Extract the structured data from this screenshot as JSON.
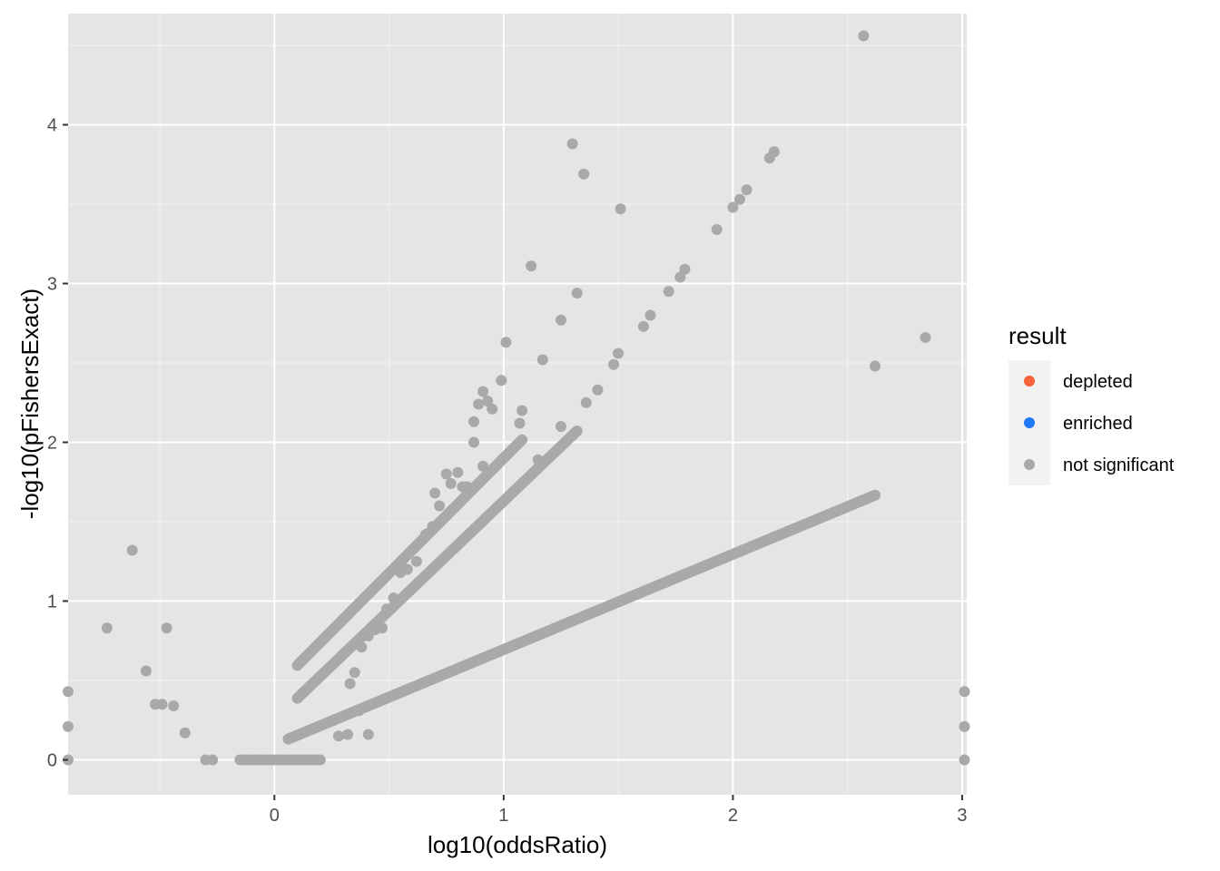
{
  "chart_data": {
    "type": "scatter",
    "title": "",
    "xlabel": "log10(oddsRatio)",
    "ylabel": "-log10(pFishersExact)",
    "xlim": [
      -0.9,
      3.02
    ],
    "ylim": [
      -0.22,
      4.7
    ],
    "x_ticks": [
      0,
      1,
      2,
      3
    ],
    "y_ticks": [
      0,
      1,
      2,
      3,
      4
    ],
    "x_tick_labels": [
      "0",
      "1",
      "2",
      "3"
    ],
    "y_tick_labels": [
      "0",
      "1",
      "2",
      "3",
      "4"
    ],
    "grid": true,
    "panel_background": "#e5e5e5",
    "legend": {
      "title": "result",
      "position": "right",
      "entries": [
        {
          "label": "depleted",
          "color": "#f8623a"
        },
        {
          "label": "enriched",
          "color": "#1f78f4"
        },
        {
          "label": "not significant",
          "color": "#a9a9a9"
        }
      ]
    },
    "series": [
      {
        "name": "not significant",
        "color": "#a9a9a9",
        "x": [
          2.57,
          1.3,
          1.35,
          1.51,
          2.18,
          2.16,
          2.06,
          2.03,
          2.0,
          1.93,
          1.12,
          1.32,
          1.79,
          1.77,
          1.72,
          1.25,
          1.17,
          1.01,
          0.99,
          0.91,
          0.93,
          0.89,
          0.87,
          0.95,
          0.91,
          0.87,
          1.08,
          1.07,
          1.64,
          1.61,
          1.5,
          1.48,
          1.41,
          1.36,
          2.84,
          2.62,
          1.15,
          1.25,
          0.82,
          0.77,
          0.69,
          0.72,
          -0.62,
          -0.73,
          -0.47,
          -0.56,
          -0.52,
          -0.49,
          -0.44,
          -0.39,
          -0.3,
          -0.27,
          0.37,
          0.41,
          0.32,
          0.28,
          0.17,
          0.16,
          -0.9,
          -0.9,
          -0.9,
          3.01,
          3.01,
          3.01,
          0.84,
          0.8,
          0.75,
          0.7,
          0.66,
          0.62,
          0.58,
          0.55,
          0.52,
          0.49,
          0.47,
          0.44,
          0.41,
          0.38,
          0.35,
          0.33
        ],
        "y": [
          4.56,
          3.88,
          3.69,
          3.47,
          3.83,
          3.79,
          3.59,
          3.53,
          3.48,
          3.34,
          3.11,
          2.94,
          3.09,
          3.04,
          2.95,
          2.77,
          2.52,
          2.63,
          2.39,
          2.32,
          2.26,
          2.24,
          2.13,
          2.21,
          1.85,
          2.0,
          2.2,
          2.12,
          2.8,
          2.73,
          2.56,
          2.49,
          2.33,
          2.25,
          2.66,
          2.48,
          1.89,
          2.1,
          1.72,
          1.74,
          1.47,
          1.6,
          1.32,
          0.83,
          0.83,
          0.56,
          0.35,
          0.35,
          0.34,
          0.17,
          0.0,
          0.0,
          0.31,
          0.16,
          0.16,
          0.15,
          0.0,
          0.0,
          0.43,
          0.21,
          0.0,
          0.43,
          0.21,
          0.0,
          1.72,
          1.81,
          1.8,
          1.68,
          1.42,
          1.25,
          1.2,
          1.18,
          1.02,
          0.95,
          0.83,
          0.82,
          0.78,
          0.71,
          0.55,
          0.48
        ],
        "curves": [
          {
            "x0": 0.06,
            "x1": 2.62,
            "slope_a": 0.6,
            "slope_b": 0.095
          },
          {
            "x0": 0.1,
            "x1": 1.32,
            "slope_a": 1.38,
            "slope_b": 0.25
          },
          {
            "x0": 0.1,
            "x1": 1.08,
            "slope_a": 1.45,
            "slope_b": 0.45
          }
        ],
        "zero_cluster_x_range": [
          -0.15,
          0.2
        ]
      }
    ]
  }
}
